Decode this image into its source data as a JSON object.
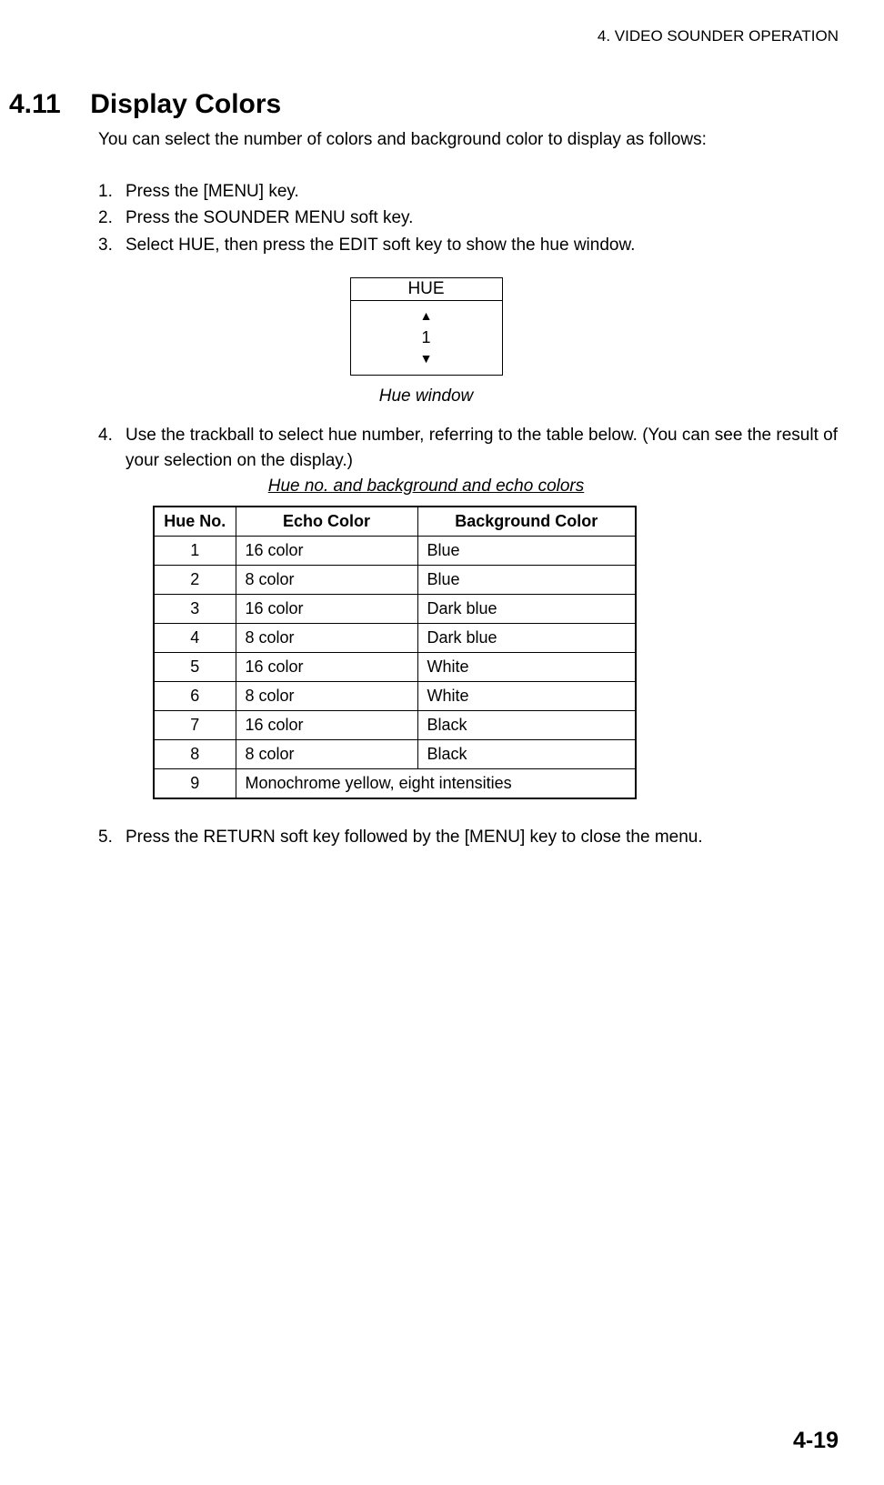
{
  "page": {
    "header": "4. VIDEO SOUNDER OPERATION",
    "footer": "4-19"
  },
  "section": {
    "number": "4.11",
    "title": "Display Colors"
  },
  "intro": "You can select the number of colors and background color to display as follows:",
  "steps_a": [
    "Press the [MENU] key.",
    "Press the SOUNDER MENU soft key.",
    "Select HUE, then press the EDIT soft key to show the hue window."
  ],
  "hue_window": {
    "title": "HUE",
    "value": "1",
    "caption": "Hue window"
  },
  "step4_num": "4.",
  "step4": "Use the trackball to select hue number, referring to the table below. (You can see the result of your selection on the display.)",
  "table_caption": "Hue no. and background and echo colors",
  "table": {
    "columns": [
      "Hue No.",
      "Echo Color",
      "Background Color"
    ],
    "rows": [
      {
        "no": "1",
        "echo": "16 color",
        "bg": "Blue"
      },
      {
        "no": "2",
        "echo": "8 color",
        "bg": "Blue"
      },
      {
        "no": "3",
        "echo": "16 color",
        "bg": "Dark blue"
      },
      {
        "no": "4",
        "echo": "8 color",
        "bg": "Dark blue"
      },
      {
        "no": "5",
        "echo": "16 color",
        "bg": "White"
      },
      {
        "no": "6",
        "echo": "8 color",
        "bg": "White"
      },
      {
        "no": "7",
        "echo": "16 color",
        "bg": "Black"
      },
      {
        "no": "8",
        "echo": "8 color",
        "bg": "Black"
      }
    ],
    "last_row": {
      "no": "9",
      "span": "Monochrome yellow, eight intensities"
    }
  },
  "step5_num": "5.",
  "step5": "Press the RETURN soft key followed by the [MENU] key to close the menu."
}
